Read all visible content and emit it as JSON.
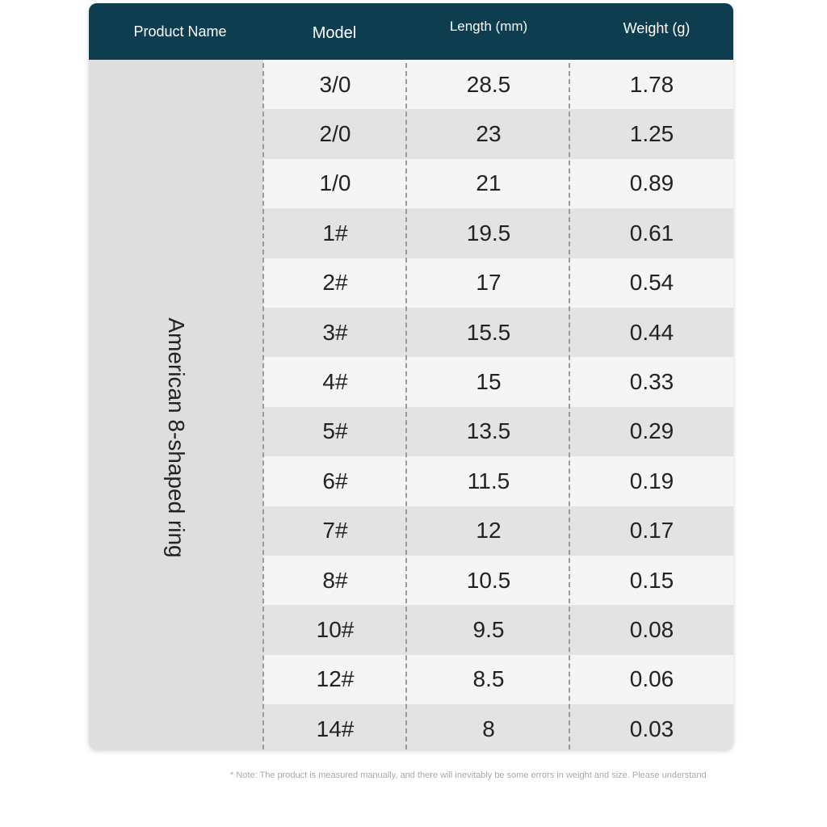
{
  "header": {
    "product_name": "Product Name",
    "model": "Model",
    "length": "Length (mm)",
    "weight": "Weight (g)"
  },
  "product_name": "American 8-shaped ring",
  "rows": [
    {
      "model": "3/0",
      "length": "28.5",
      "weight": "1.78"
    },
    {
      "model": "2/0",
      "length": "23",
      "weight": "1.25"
    },
    {
      "model": "1/0",
      "length": "21",
      "weight": "0.89"
    },
    {
      "model": "1#",
      "length": "19.5",
      "weight": "0.61"
    },
    {
      "model": "2#",
      "length": "17",
      "weight": "0.54"
    },
    {
      "model": "3#",
      "length": "15.5",
      "weight": "0.44"
    },
    {
      "model": "4#",
      "length": "15",
      "weight": "0.33"
    },
    {
      "model": "5#",
      "length": "13.5",
      "weight": "0.29"
    },
    {
      "model": "6#",
      "length": "11.5",
      "weight": "0.19"
    },
    {
      "model": "7#",
      "length": "12",
      "weight": "0.17"
    },
    {
      "model": "8#",
      "length": "10.5",
      "weight": "0.15"
    },
    {
      "model": "10#",
      "length": "9.5",
      "weight": "0.08"
    },
    {
      "model": "12#",
      "length": "8.5",
      "weight": "0.06"
    },
    {
      "model": "14#",
      "length": "8",
      "weight": "0.03"
    }
  ],
  "note": "* Note: The product is measured manually, and there will inevitably be some errors in weight and size. Please understand",
  "colors": {
    "header_bg": "#0d3d4f",
    "row_light": "#f5f5f5",
    "row_dark": "#e3e3e3",
    "name_col_bg": "#dedede"
  }
}
